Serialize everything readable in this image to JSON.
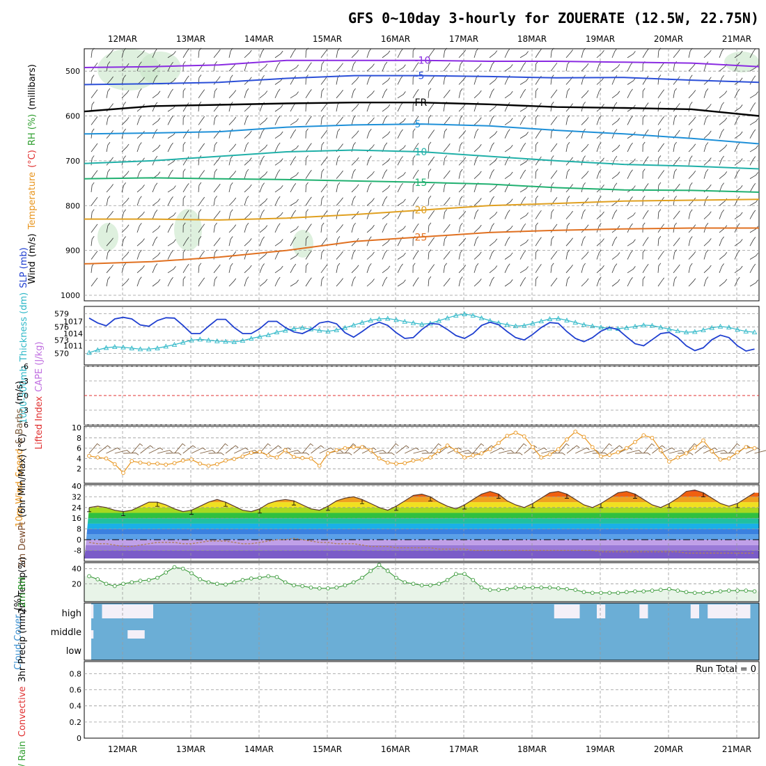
{
  "title": "GFS 0~10day 3-hourly for ZOUERATE (12.5W, 22.75N)",
  "date_labels": [
    "12MAR",
    "13MAR",
    "14MAR",
    "15MAR",
    "16MAR",
    "17MAR",
    "18MAR",
    "19MAR",
    "20MAR",
    "21MAR"
  ],
  "colors": {
    "frame": "#000000",
    "grid": "#999999",
    "slp": "#1f3fd0",
    "thickness": "#2fb8c8",
    "wind_speed": "#e8951e",
    "barb": "#7a5a3a",
    "rh_fill": "#c8e6c8",
    "rh_line": "#3a9a3a",
    "cloud": "#6baed6",
    "cloud_clear": "#f4f0f8",
    "cape_zero": "#e03030"
  },
  "chart_data": [
    {
      "type": "contour",
      "panel": "upper-air",
      "axis_labels": {
        "left": [
          {
            "text": "Wind",
            "color": "#000000"
          },
          {
            "text": "(m/s)",
            "color": "#000000"
          },
          {
            "text": "Temperature",
            "color": "#e8951e"
          },
          {
            "text": "(°C)",
            "color": "#e03030"
          },
          {
            "text": "RH (%)",
            "color": "#2e9e2e"
          },
          {
            "text": "(millibars)",
            "color": "#000000"
          }
        ]
      },
      "y_ticks": [
        500,
        600,
        700,
        800,
        900,
        1000
      ],
      "ylim": [
        1000,
        450
      ],
      "isotherms": [
        {
          "label": "-10",
          "color": "#8a2be2",
          "levels_mb": [
            492,
            490,
            486,
            476,
            476,
            476,
            478,
            478,
            480,
            482,
            490
          ]
        },
        {
          "label": "-5",
          "color": "#2b4fd8",
          "levels_mb": [
            530,
            528,
            525,
            516,
            510,
            510,
            512,
            515,
            514,
            520,
            525
          ]
        },
        {
          "label": "FR",
          "color": "#000000",
          "levels_mb": [
            590,
            578,
            575,
            572,
            570,
            570,
            574,
            580,
            582,
            585,
            600
          ]
        },
        {
          "label": "5",
          "color": "#1e90d8",
          "levels_mb": [
            640,
            638,
            635,
            625,
            620,
            618,
            622,
            632,
            640,
            650,
            662
          ]
        },
        {
          "label": "10",
          "color": "#20b0a8",
          "levels_mb": [
            706,
            700,
            690,
            680,
            676,
            680,
            690,
            700,
            708,
            712,
            718
          ]
        },
        {
          "label": "15",
          "color": "#20b070",
          "levels_mb": [
            740,
            738,
            740,
            742,
            745,
            748,
            752,
            760,
            765,
            766,
            770
          ]
        },
        {
          "label": "20",
          "color": "#e0a020",
          "levels_mb": [
            830,
            830,
            832,
            828,
            820,
            810,
            800,
            795,
            790,
            788,
            786
          ]
        },
        {
          "label": "25",
          "color": "#e07020",
          "levels_mb": [
            930,
            925,
            915,
            900,
            880,
            870,
            860,
            855,
            852,
            850,
            850
          ]
        }
      ]
    },
    {
      "type": "line",
      "panel": "thickness-slp",
      "axis_labels": [
        {
          "text": "1000-500mb",
          "color": "#2fb8c8"
        },
        {
          "text": "Thickness (dm)",
          "color": "#2fb8c8"
        },
        {
          "text": "SLP (mb)",
          "color": "#1f3fd0"
        }
      ],
      "left_ticks": [
        570,
        573,
        576,
        579
      ],
      "right_ticks": [
        1011,
        1014,
        1017
      ],
      "series": [
        {
          "unit": "dm",
          "axis": "left",
          "values": [
            570.2,
            570.8,
            571.3,
            571.5,
            571.4,
            571.2,
            571.0,
            571.0,
            571.2,
            571.6,
            572.0,
            572.5,
            573.0,
            573.2,
            573.0,
            572.8,
            572.7,
            572.6,
            572.9,
            573.4,
            573.8,
            574.2,
            574.8,
            575.2,
            575.6,
            575.8,
            575.5,
            575.2,
            575.0,
            575.3,
            575.8,
            576.4,
            577.0,
            577.5,
            577.8,
            577.9,
            577.6,
            577.2,
            576.9,
            576.6,
            576.8,
            577.4,
            578.0,
            578.6,
            578.9,
            578.6,
            578.0,
            577.4,
            576.9,
            576.5,
            576.2,
            576.3,
            576.8,
            577.3,
            577.8,
            577.9,
            577.5,
            577.0,
            576.5,
            576.2,
            575.9,
            575.7,
            575.6,
            575.8,
            576.1,
            576.4,
            576.3,
            575.9,
            575.5,
            575.1,
            574.8,
            574.9,
            575.3,
            575.8,
            576.1,
            575.9,
            575.4,
            575.0,
            574.8,
            574.7,
            574.5,
            574.4,
            574.2,
            573.8,
            573.4,
            573.0
          ]
        },
        {
          "unit": "mb",
          "axis": "right",
          "values": [
            1017.8,
            1016.6,
            1015.9,
            1017.6,
            1018.0,
            1017.6,
            1016.1,
            1015.8,
            1017.2,
            1017.9,
            1017.8,
            1016.0,
            1014.0,
            1014.0,
            1015.8,
            1017.5,
            1017.5,
            1015.5,
            1014.0,
            1014.0,
            1015.2,
            1017.0,
            1017.0,
            1015.5,
            1014.4,
            1014.0,
            1015.0,
            1016.6,
            1017.0,
            1016.4,
            1014.2,
            1013.1,
            1014.5,
            1016.0,
            1016.8,
            1016.0,
            1014.2,
            1012.8,
            1013.0,
            1015.0,
            1016.5,
            1016.3,
            1015.0,
            1013.5,
            1012.8,
            1014.0,
            1016.0,
            1016.8,
            1016.2,
            1014.5,
            1013.0,
            1012.4,
            1013.8,
            1015.5,
            1016.7,
            1016.5,
            1014.5,
            1012.8,
            1012.0,
            1013.0,
            1014.6,
            1015.5,
            1015.0,
            1013.2,
            1011.5,
            1011.0,
            1012.5,
            1014.0,
            1014.3,
            1013.0,
            1011.0,
            1009.8,
            1010.5,
            1012.5,
            1013.6,
            1013.0,
            1011.0,
            1009.7,
            1010.2,
            1011.8,
            1012.5,
            1011.5,
            1010.0,
            1009.8,
            1010.8,
            1011.5
          ]
        }
      ]
    },
    {
      "type": "line",
      "panel": "cape-lifted-index",
      "axis_labels": [
        {
          "text": "Lifted Index",
          "color": "#e03030"
        },
        {
          "text": "CAPE (J/kg)",
          "color": "#c070e0"
        }
      ],
      "y_ticks": [
        "-6",
        "-3",
        "0",
        "3",
        "6"
      ],
      "ylim": [
        6,
        -6
      ],
      "series": [
        {
          "values": []
        }
      ]
    },
    {
      "type": "line",
      "panel": "10m-wind",
      "axis_labels": [
        {
          "text": "10m Wind",
          "color": "#e8951e"
        },
        {
          "text": "Speed",
          "color": "#e8951e"
        },
        {
          "text": "& Barbs",
          "color": "#7a5a3a"
        },
        {
          "text": "(m/s)",
          "color": "#000000"
        }
      ],
      "y_ticks": [
        2,
        4,
        6,
        8,
        10
      ],
      "ylim": [
        0,
        10
      ],
      "series": [
        {
          "unit": "m/s",
          "values": [
            4.5,
            4.2,
            4.0,
            2.9,
            1.2,
            3.5,
            3.2,
            3.0,
            3.0,
            2.8,
            3.1,
            3.6,
            3.8,
            3.0,
            2.6,
            2.9,
            3.6,
            3.9,
            4.4,
            5.1,
            5.3,
            4.6,
            4.2,
            5.6,
            4.3,
            4.1,
            4.0,
            2.6,
            5.0,
            5.6,
            6.0,
            6.2,
            6.2,
            5.6,
            4.0,
            3.2,
            3.0,
            3.1,
            3.6,
            3.8,
            4.2,
            5.5,
            6.5,
            5.6,
            4.2,
            4.6,
            5.0,
            5.8,
            7.0,
            8.4,
            9.0,
            8.3,
            6.2,
            4.2,
            4.8,
            5.8,
            7.7,
            9.2,
            8.2,
            6.2,
            4.4,
            4.7,
            5.2,
            6.0,
            7.2,
            8.5,
            8.0,
            5.6,
            3.4,
            4.2,
            5.0,
            6.1,
            7.5,
            5.4,
            3.8,
            4.0,
            5.2,
            6.2,
            6.0,
            4.8,
            4.4,
            5.1,
            6.4,
            7.2,
            6.3,
            4.6
          ]
        }
      ]
    },
    {
      "type": "area",
      "panel": "2m-temperature",
      "axis_labels": [
        {
          "text": "2m Temp",
          "color": "#000000"
        },
        {
          "text": "2m DewPt",
          "color": "#7a4a2a"
        },
        {
          "text": "(6hr Min/Max) (°C)",
          "color": "#000000"
        }
      ],
      "y_ticks": [
        -8,
        0,
        8,
        16,
        24,
        32,
        40
      ],
      "ylim": [
        -14,
        40
      ],
      "series": [
        {
          "name": "2m Temp",
          "unit": "°C",
          "values": [
            24,
            25,
            24,
            22,
            21,
            22,
            25,
            28,
            28,
            26,
            23,
            21,
            22,
            25,
            28,
            30,
            28,
            25,
            22,
            21,
            23,
            27,
            29,
            30,
            29,
            26,
            23,
            22,
            25,
            29,
            31,
            32,
            30,
            27,
            24,
            22,
            25,
            29,
            33,
            34,
            32,
            28,
            25,
            23,
            26,
            30,
            34,
            36,
            34,
            29,
            26,
            24,
            27,
            31,
            35,
            36,
            34,
            30,
            26,
            24,
            27,
            31,
            35,
            36,
            34,
            30,
            26,
            24,
            27,
            31,
            36,
            37,
            35,
            31,
            27,
            25,
            27,
            31,
            35,
            37,
            35,
            31,
            27,
            25,
            27,
            30
          ]
        },
        {
          "name": "2m DewPt",
          "unit": "°C",
          "values": [
            -2,
            -3,
            -3,
            -4,
            -5,
            -5,
            -4,
            -3,
            -2,
            -2,
            -2,
            -3,
            -3,
            -2,
            -1,
            -1,
            -1,
            -2,
            -3,
            -3,
            -2,
            -1,
            0,
            0,
            1,
            0,
            -1,
            -2,
            -2,
            -3,
            -3,
            -3,
            -4,
            -5,
            -5,
            -5,
            -6,
            -6,
            -6,
            -6,
            -6,
            -7,
            -7,
            -7,
            -7,
            -8,
            -8,
            -8,
            -8,
            -8,
            -8,
            -8,
            -8,
            -8,
            -8,
            -8,
            -8,
            -8,
            -8,
            -8,
            -9,
            -9,
            -9,
            -9,
            -9,
            -9,
            -9,
            -9,
            -9,
            -9,
            -10,
            -10,
            -10,
            -10,
            -10,
            -10,
            -10,
            -10,
            -10,
            -10,
            -10,
            -10,
            -11,
            -11,
            -11,
            -11
          ]
        }
      ]
    },
    {
      "type": "area",
      "panel": "2m-rh",
      "axis_labels": [
        {
          "text": "2m RH",
          "color": "#2e9e2e"
        },
        {
          "text": "(%)",
          "color": "#000000"
        }
      ],
      "y_ticks": [
        20,
        40
      ],
      "ylim": [
        0,
        48
      ],
      "series": [
        {
          "unit": "%",
          "values": [
            30,
            26,
            20,
            17,
            20,
            22,
            24,
            25,
            28,
            35,
            42,
            40,
            34,
            26,
            22,
            20,
            19,
            22,
            25,
            27,
            28,
            30,
            29,
            22,
            18,
            17,
            15,
            14,
            14,
            15,
            18,
            22,
            28,
            37,
            45,
            37,
            28,
            22,
            20,
            18,
            18,
            20,
            25,
            33,
            33,
            25,
            15,
            12,
            12,
            13,
            15,
            15,
            15,
            15,
            15,
            14,
            13,
            12,
            9,
            8,
            8,
            8,
            8,
            9,
            10,
            10,
            11,
            12,
            13,
            11,
            9,
            8,
            8,
            9,
            10,
            11,
            11,
            11,
            10,
            9,
            9,
            8,
            8,
            9,
            10,
            11
          ]
        }
      ]
    },
    {
      "type": "heatmap",
      "panel": "cloud-cover",
      "axis_labels": [
        {
          "text": "Cloud Cover",
          "color": "#3a8fd0"
        },
        {
          "text": "(%)",
          "color": "#000000"
        }
      ],
      "layers": [
        "high",
        "middle",
        "low"
      ],
      "clear_spans_steps": {
        "high": [
          [
            0,
            1
          ],
          [
            2,
            8
          ],
          [
            55,
            58
          ],
          [
            60,
            61
          ],
          [
            65,
            66
          ],
          [
            71,
            72
          ],
          [
            73,
            78
          ],
          [
            81,
            83
          ],
          [
            83,
            84
          ]
        ],
        "middle": [
          [
            0,
            1
          ],
          [
            5,
            7
          ]
        ],
        "low": []
      }
    },
    {
      "type": "bar",
      "panel": "3hr-precip",
      "axis_labels": [
        {
          "text": "Total / Rain",
          "color": "#2e9e2e"
        },
        {
          "text": "Convective",
          "color": "#e03030"
        },
        {
          "text": "3hr Precip (mm)",
          "color": "#000000"
        }
      ],
      "y_ticks": [
        "0",
        "0.2",
        "0.4",
        "0.6",
        "0.8"
      ],
      "ylim": [
        0,
        0.95
      ],
      "run_total": "Run Total = 0",
      "values": []
    }
  ]
}
